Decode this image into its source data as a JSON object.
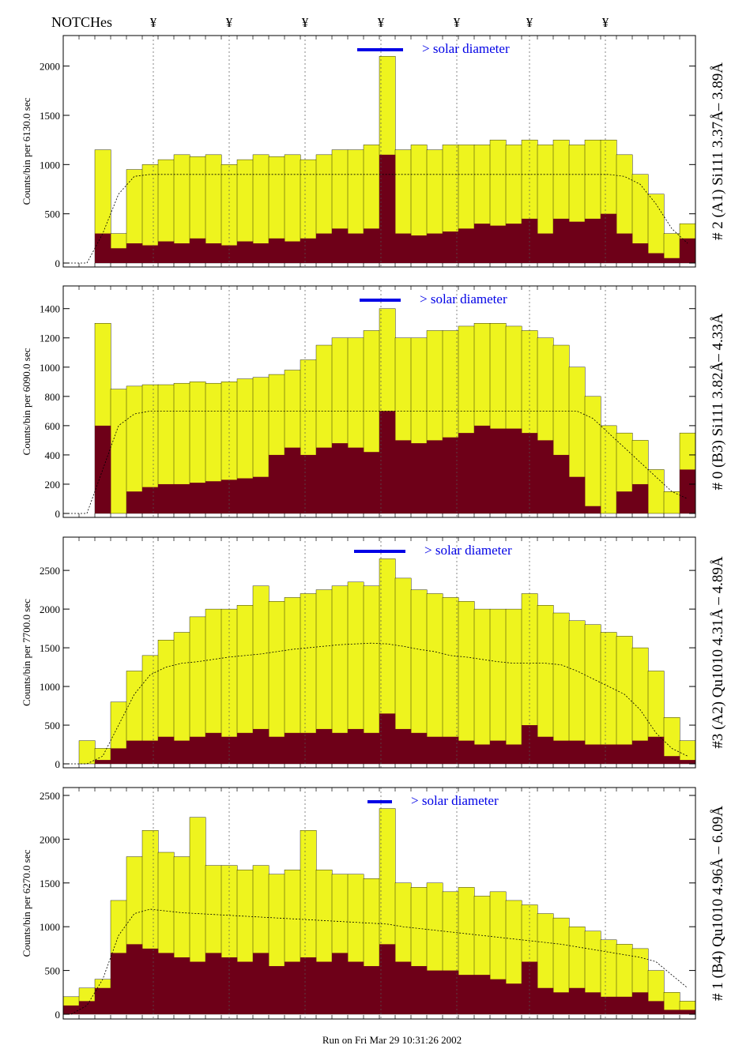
{
  "header": {
    "notches_label": "NOTCHes",
    "notch_symbol": "¥",
    "notch_count": 7
  },
  "footer": {
    "run_text": "Run on Fri Mar 29 10:31:26 2002"
  },
  "colors": {
    "total": "#eef41e",
    "filtered": "#6e0018",
    "solar": "#0000e6",
    "annot": "#0000ff"
  },
  "chart_data": [
    {
      "type": "bar",
      "title": "# 2 (A1) Si111  3.37Å– 3.89Å",
      "ylabel": "Counts/bin per  6130.0 sec",
      "solar_label": "> solar diameter",
      "ylim": [
        0,
        2310
      ],
      "yticks": [
        0,
        500,
        1000,
        1500,
        2000
      ],
      "series": [
        {
          "name": "total",
          "values": [
            0,
            0,
            1150,
            300,
            950,
            1000,
            1050,
            1100,
            1080,
            1100,
            1000,
            1050,
            1100,
            1080,
            1100,
            1050,
            1100,
            1150,
            1150,
            1200,
            2100,
            1150,
            1200,
            1150,
            1200,
            1200,
            1200,
            1250,
            1200,
            1250,
            1200,
            1250,
            1200,
            1250,
            1250,
            1100,
            900,
            700,
            300,
            400
          ]
        },
        {
          "name": "filtered",
          "values": [
            0,
            0,
            300,
            150,
            200,
            180,
            220,
            200,
            250,
            200,
            180,
            220,
            200,
            250,
            220,
            250,
            300,
            350,
            300,
            350,
            1100,
            300,
            280,
            300,
            320,
            350,
            400,
            380,
            400,
            450,
            300,
            450,
            420,
            450,
            500,
            300,
            200,
            100,
            50,
            250
          ]
        },
        {
          "name": "fit",
          "values": [
            0,
            0,
            300,
            700,
            880,
            900,
            900,
            900,
            900,
            900,
            900,
            900,
            900,
            900,
            900,
            900,
            900,
            900,
            900,
            900,
            900,
            900,
            900,
            900,
            900,
            900,
            900,
            900,
            900,
            900,
            900,
            900,
            900,
            900,
            900,
            880,
            800,
            600,
            350,
            200
          ]
        }
      ]
    },
    {
      "type": "bar",
      "title": "# 0 (B3) Si111  3.82Å– 4.33Å",
      "ylabel": "Counts/bin per  6090.0 sec",
      "solar_label": "> solar diameter",
      "ylim": [
        0,
        1555
      ],
      "yticks": [
        0,
        200,
        400,
        600,
        800,
        1000,
        1200,
        1400
      ],
      "series": [
        {
          "name": "total",
          "values": [
            0,
            0,
            1300,
            850,
            870,
            880,
            880,
            890,
            900,
            890,
            900,
            920,
            930,
            950,
            980,
            1050,
            1150,
            1200,
            1200,
            1250,
            1400,
            1200,
            1200,
            1250,
            1250,
            1280,
            1300,
            1300,
            1280,
            1250,
            1200,
            1150,
            1000,
            800,
            600,
            550,
            500,
            300,
            150,
            550
          ]
        },
        {
          "name": "filtered",
          "values": [
            0,
            0,
            600,
            0,
            150,
            180,
            200,
            200,
            210,
            220,
            230,
            240,
            250,
            400,
            450,
            400,
            450,
            480,
            450,
            420,
            700,
            500,
            480,
            500,
            520,
            550,
            600,
            580,
            580,
            550,
            500,
            400,
            250,
            50,
            0,
            150,
            200,
            0,
            0,
            300
          ]
        },
        {
          "name": "fit",
          "values": [
            0,
            0,
            300,
            600,
            680,
            700,
            700,
            700,
            700,
            700,
            700,
            700,
            700,
            700,
            700,
            700,
            700,
            700,
            700,
            700,
            700,
            700,
            700,
            700,
            700,
            700,
            700,
            700,
            700,
            700,
            700,
            700,
            700,
            650,
            550,
            450,
            350,
            250,
            150,
            100
          ]
        }
      ]
    },
    {
      "type": "bar",
      "title": "#3 (A2) Qu1010  4.31Å – 4.89Å",
      "ylabel": "Counts/bin per  7700.0 sec",
      "solar_label": "> solar diameter",
      "ylim": [
        0,
        2930
      ],
      "yticks": [
        0,
        500,
        1000,
        1500,
        2000,
        2500
      ],
      "series": [
        {
          "name": "total",
          "values": [
            0,
            300,
            200,
            800,
            1200,
            1400,
            1600,
            1700,
            1900,
            2000,
            2000,
            2050,
            2300,
            2100,
            2150,
            2200,
            2250,
            2300,
            2350,
            2300,
            2650,
            2400,
            2250,
            2200,
            2150,
            2100,
            2000,
            2000,
            2000,
            2200,
            2050,
            1950,
            1850,
            1800,
            1700,
            1650,
            1500,
            1200,
            600,
            300
          ]
        },
        {
          "name": "filtered",
          "values": [
            0,
            0,
            50,
            200,
            300,
            300,
            350,
            300,
            350,
            400,
            350,
            400,
            450,
            350,
            400,
            400,
            450,
            400,
            450,
            400,
            650,
            450,
            400,
            350,
            350,
            300,
            250,
            300,
            250,
            500,
            350,
            300,
            300,
            250,
            250,
            250,
            300,
            350,
            100,
            50
          ]
        },
        {
          "name": "fit",
          "values": [
            0,
            0,
            100,
            500,
            900,
            1150,
            1250,
            1300,
            1320,
            1350,
            1380,
            1400,
            1420,
            1450,
            1480,
            1500,
            1520,
            1540,
            1550,
            1560,
            1550,
            1520,
            1480,
            1450,
            1400,
            1380,
            1350,
            1320,
            1300,
            1300,
            1300,
            1280,
            1200,
            1100,
            1000,
            900,
            700,
            400,
            200,
            100
          ]
        }
      ]
    },
    {
      "type": "bar",
      "title": "# 1 (B4) Qu1010 4.96Å – 6.09Å",
      "ylabel": "Counts/bin per  6270.0 sec",
      "solar_label": "> solar diameter",
      "ylim": [
        0,
        2590
      ],
      "yticks": [
        0,
        500,
        1000,
        1500,
        2000,
        2500
      ],
      "series": [
        {
          "name": "total",
          "values": [
            200,
            300,
            400,
            1300,
            1800,
            2100,
            1850,
            1800,
            2250,
            1700,
            1700,
            1650,
            1700,
            1600,
            1650,
            2100,
            1650,
            1600,
            1600,
            1550,
            2350,
            1500,
            1450,
            1500,
            1400,
            1450,
            1350,
            1400,
            1300,
            1250,
            1150,
            1100,
            1000,
            950,
            850,
            800,
            750,
            500,
            250,
            150
          ]
        },
        {
          "name": "filtered",
          "values": [
            100,
            150,
            300,
            700,
            800,
            750,
            700,
            650,
            600,
            700,
            650,
            600,
            700,
            550,
            600,
            650,
            600,
            700,
            600,
            550,
            800,
            600,
            550,
            500,
            500,
            450,
            450,
            400,
            350,
            600,
            300,
            250,
            300,
            250,
            200,
            200,
            250,
            150,
            50,
            50
          ]
        },
        {
          "name": "fit",
          "values": [
            0,
            100,
            400,
            900,
            1150,
            1200,
            1180,
            1160,
            1150,
            1140,
            1130,
            1120,
            1110,
            1100,
            1090,
            1080,
            1070,
            1060,
            1050,
            1040,
            1030,
            1000,
            980,
            960,
            940,
            920,
            900,
            880,
            860,
            840,
            820,
            800,
            770,
            740,
            710,
            680,
            650,
            600,
            450,
            300
          ]
        }
      ]
    }
  ]
}
